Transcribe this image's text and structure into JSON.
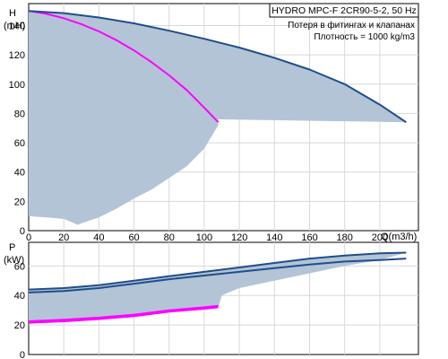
{
  "chart_data": [
    {
      "type": "line",
      "title": "HYDRO MPC-F 2CR90-5-2, 50 Hz",
      "annotations": [
        "Потеря в фитингах и клапанах",
        "Плотность = 1000 kg/m3"
      ],
      "ylabel": "H",
      "ylabel_unit": "(mH)",
      "xlabel": "Q(m3/h)",
      "xlim": [
        0,
        222
      ],
      "ylim": [
        0,
        155
      ],
      "xticks": [
        0,
        20,
        40,
        60,
        80,
        100,
        120,
        140,
        160,
        180,
        200
      ],
      "yticks": [
        0,
        20,
        40,
        60,
        80,
        100,
        120,
        140
      ],
      "grid": true,
      "series": [
        {
          "color": "#ff00ff",
          "x": [
            0,
            10,
            20,
            30,
            40,
            50,
            60,
            70,
            80,
            90,
            100,
            108
          ],
          "y": [
            150,
            148,
            145,
            141,
            136,
            130,
            123,
            115,
            106,
            96,
            84,
            74
          ]
        },
        {
          "color": "#1f4e8c",
          "x": [
            0,
            20,
            40,
            60,
            80,
            100,
            120,
            140,
            160,
            180,
            200,
            215
          ],
          "y": [
            150,
            148.5,
            145.5,
            141.5,
            136.5,
            131,
            125,
            118,
            110,
            100,
            86,
            74
          ]
        }
      ],
      "shaded_region": {
        "color": "#b3c4d6",
        "x": [
          0,
          20,
          40,
          60,
          80,
          100,
          120,
          140,
          160,
          180,
          200,
          215,
          108,
          108,
          100,
          90,
          80,
          70,
          60,
          50,
          40,
          30,
          28,
          20,
          10,
          0
        ],
        "y": [
          150,
          148.5,
          145.5,
          141.5,
          136.5,
          131,
          125,
          118,
          110,
          100,
          86,
          74,
          76,
          72,
          56,
          44,
          36,
          28,
          22,
          15,
          9,
          5,
          4,
          8,
          9,
          10
        ]
      }
    },
    {
      "type": "line",
      "ylabel": "P",
      "ylabel_unit": "(kW)",
      "xlim": [
        0,
        222
      ],
      "ylim": [
        0,
        76
      ],
      "yticks": [
        0,
        20,
        40,
        60
      ],
      "grid": true,
      "series": [
        {
          "color": "#ff00ff",
          "x": [
            0,
            20,
            40,
            60,
            80,
            100,
            108
          ],
          "y": [
            21.5,
            22.5,
            24,
            26,
            29,
            31,
            32
          ]
        },
        {
          "color": "#ff00ff",
          "x": [
            0,
            20,
            40,
            60,
            80,
            100,
            108
          ],
          "y": [
            22.5,
            23.5,
            25,
            27,
            30,
            32,
            33
          ]
        },
        {
          "color": "#1f4e8c",
          "x": [
            0,
            20,
            40,
            60,
            80,
            100,
            120,
            140,
            160,
            180,
            200,
            215
          ],
          "y": [
            42,
            43,
            45,
            48,
            51,
            53.5,
            56,
            58.5,
            61,
            63,
            64,
            65
          ]
        },
        {
          "color": "#1f4e8c",
          "x": [
            0,
            20,
            40,
            60,
            80,
            100,
            120,
            140,
            160,
            180,
            200,
            215
          ],
          "y": [
            44,
            45,
            47,
            50,
            53,
            56,
            59,
            62,
            65,
            67,
            68.5,
            69
          ]
        }
      ],
      "shaded_region": {
        "color": "#b3c4d6",
        "x": [
          0,
          20,
          40,
          60,
          80,
          100,
          120,
          140,
          160,
          180,
          200,
          215,
          200,
          180,
          160,
          140,
          120,
          110,
          108,
          100,
          80,
          60,
          40,
          20,
          0
        ],
        "y": [
          44,
          45,
          47,
          50,
          53,
          56,
          59,
          62,
          65,
          67,
          68.5,
          69,
          64,
          60,
          55,
          50,
          45,
          40,
          32,
          31,
          29,
          26,
          24,
          22.5,
          21.5
        ]
      }
    }
  ]
}
